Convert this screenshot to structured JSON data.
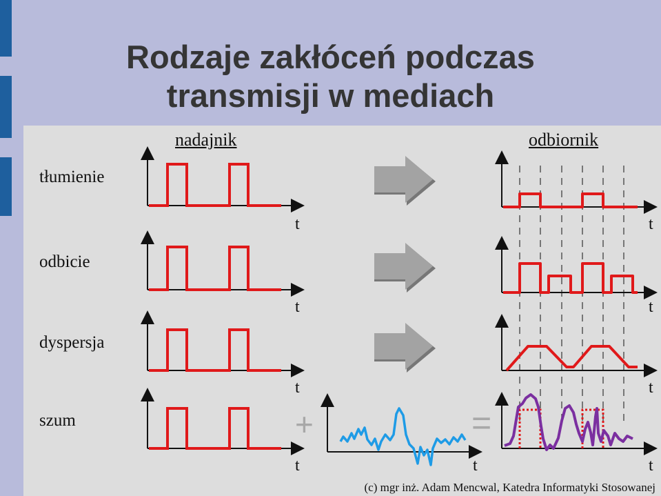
{
  "title_line1": "Rodzaje zakłóceń podczas",
  "title_line2": "transmisji w mediach",
  "sender_label": "nadajnik",
  "receiver_label": "odbiornik",
  "rows": [
    {
      "label": "tłumienie"
    },
    {
      "label": "odbicie"
    },
    {
      "label": "dyspersja"
    },
    {
      "label": "szum"
    }
  ],
  "axis_label": "t",
  "plus_sign": "+",
  "equals_sign": "=",
  "footer": "(c) mgr inż. Adam Mencwal, Katedra Informatyki Stosowanej",
  "colors": {
    "background": "#b8bbdb",
    "panel": "#dddddd",
    "accent": "#1e5f9e",
    "signal": "#e0191a",
    "noise": "#1e9be6",
    "result": "#7b2fa0",
    "arrow": "#9b9b9b"
  }
}
